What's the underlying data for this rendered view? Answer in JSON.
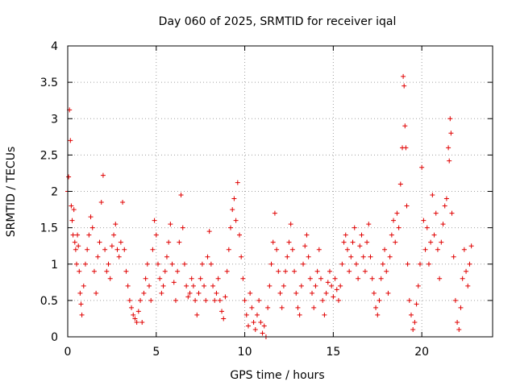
{
  "chart_data": {
    "type": "scatter",
    "title": "Day 060 of 2025, SRMTID for receiver iqal",
    "xlabel": "GPS time / hours",
    "ylabel": "SRMTID / TECUs",
    "xlim": [
      0,
      24
    ],
    "ylim": [
      0,
      4
    ],
    "x_ticks": [
      0,
      5,
      10,
      15,
      20
    ],
    "x_tick_labels": [
      "0",
      "5",
      "10",
      "15",
      "20"
    ],
    "y_ticks": [
      0,
      0.5,
      1,
      1.5,
      2,
      2.5,
      3,
      3.5,
      4
    ],
    "y_tick_labels": [
      "0",
      "0.5",
      "1",
      "1.5",
      "2",
      "2.5",
      "3",
      "3.5",
      "4"
    ],
    "grid": true,
    "marker": "+",
    "color": "#e00000",
    "series": [
      {
        "name": "SRMTID",
        "points": [
          [
            0.0,
            2.0
          ],
          [
            0.05,
            2.2
          ],
          [
            0.1,
            3.12
          ],
          [
            0.15,
            2.7
          ],
          [
            0.2,
            1.8
          ],
          [
            0.25,
            1.6
          ],
          [
            0.3,
            1.4
          ],
          [
            0.35,
            1.75
          ],
          [
            0.4,
            1.3
          ],
          [
            0.45,
            1.2
          ],
          [
            0.5,
            1.0
          ],
          [
            0.55,
            1.4
          ],
          [
            0.6,
            1.25
          ],
          [
            0.65,
            0.9
          ],
          [
            0.7,
            0.6
          ],
          [
            0.75,
            0.45
          ],
          [
            0.8,
            0.3
          ],
          [
            0.9,
            0.7
          ],
          [
            1.0,
            1.0
          ],
          [
            1.1,
            1.2
          ],
          [
            1.2,
            1.4
          ],
          [
            1.3,
            1.65
          ],
          [
            1.4,
            1.5
          ],
          [
            1.5,
            0.9
          ],
          [
            1.6,
            0.6
          ],
          [
            1.7,
            1.1
          ],
          [
            1.8,
            1.3
          ],
          [
            1.9,
            1.85
          ],
          [
            2.0,
            2.22
          ],
          [
            2.1,
            1.2
          ],
          [
            2.2,
            0.9
          ],
          [
            2.3,
            1.0
          ],
          [
            2.4,
            0.8
          ],
          [
            2.5,
            1.25
          ],
          [
            2.6,
            1.4
          ],
          [
            2.7,
            1.55
          ],
          [
            2.8,
            1.2
          ],
          [
            2.9,
            1.1
          ],
          [
            3.0,
            1.3
          ],
          [
            3.1,
            1.85
          ],
          [
            3.2,
            1.2
          ],
          [
            3.3,
            0.9
          ],
          [
            3.4,
            0.7
          ],
          [
            3.5,
            0.5
          ],
          [
            3.6,
            0.4
          ],
          [
            3.7,
            0.3
          ],
          [
            3.8,
            0.25
          ],
          [
            3.9,
            0.2
          ],
          [
            4.0,
            0.35
          ],
          [
            4.1,
            0.5
          ],
          [
            4.2,
            0.2
          ],
          [
            4.3,
            0.6
          ],
          [
            4.4,
            0.8
          ],
          [
            4.5,
            1.0
          ],
          [
            4.6,
            0.7
          ],
          [
            4.7,
            0.5
          ],
          [
            4.8,
            1.2
          ],
          [
            4.9,
            1.6
          ],
          [
            5.0,
            1.4
          ],
          [
            5.1,
            1.0
          ],
          [
            5.2,
            0.8
          ],
          [
            5.3,
            0.6
          ],
          [
            5.4,
            0.7
          ],
          [
            5.5,
            0.9
          ],
          [
            5.6,
            1.1
          ],
          [
            5.7,
            1.3
          ],
          [
            5.8,
            1.55
          ],
          [
            5.9,
            1.0
          ],
          [
            6.0,
            0.75
          ],
          [
            6.1,
            0.5
          ],
          [
            6.2,
            0.9
          ],
          [
            6.3,
            1.3
          ],
          [
            6.4,
            1.95
          ],
          [
            6.5,
            1.5
          ],
          [
            6.6,
            1.0
          ],
          [
            6.7,
            0.7
          ],
          [
            6.8,
            0.55
          ],
          [
            6.9,
            0.6
          ],
          [
            7.0,
            0.8
          ],
          [
            7.1,
            0.7
          ],
          [
            7.2,
            0.5
          ],
          [
            7.3,
            0.3
          ],
          [
            7.4,
            0.6
          ],
          [
            7.5,
            0.8
          ],
          [
            7.6,
            1.0
          ],
          [
            7.7,
            0.7
          ],
          [
            7.8,
            0.5
          ],
          [
            7.9,
            1.1
          ],
          [
            8.0,
            1.45
          ],
          [
            8.1,
            1.0
          ],
          [
            8.2,
            0.7
          ],
          [
            8.3,
            0.5
          ],
          [
            8.4,
            0.6
          ],
          [
            8.5,
            0.8
          ],
          [
            8.6,
            0.5
          ],
          [
            8.7,
            0.35
          ],
          [
            8.8,
            0.25
          ],
          [
            8.9,
            0.55
          ],
          [
            9.0,
            0.9
          ],
          [
            9.1,
            1.2
          ],
          [
            9.2,
            1.5
          ],
          [
            9.3,
            1.75
          ],
          [
            9.4,
            1.9
          ],
          [
            9.5,
            1.6
          ],
          [
            9.6,
            2.12
          ],
          [
            9.7,
            1.4
          ],
          [
            9.8,
            1.1
          ],
          [
            9.9,
            0.8
          ],
          [
            10.0,
            0.5
          ],
          [
            10.1,
            0.3
          ],
          [
            10.2,
            0.15
          ],
          [
            10.3,
            0.6
          ],
          [
            10.4,
            0.4
          ],
          [
            10.5,
            0.2
          ],
          [
            10.6,
            0.1
          ],
          [
            10.7,
            0.3
          ],
          [
            10.8,
            0.5
          ],
          [
            10.9,
            0.2
          ],
          [
            11.0,
            0.05
          ],
          [
            11.1,
            0.15
          ],
          [
            11.2,
            0.0
          ],
          [
            11.3,
            0.4
          ],
          [
            11.4,
            0.7
          ],
          [
            11.5,
            1.0
          ],
          [
            11.6,
            1.3
          ],
          [
            11.7,
            1.7
          ],
          [
            11.8,
            1.2
          ],
          [
            11.9,
            0.9
          ],
          [
            12.0,
            0.6
          ],
          [
            12.1,
            0.4
          ],
          [
            12.2,
            0.7
          ],
          [
            12.3,
            0.9
          ],
          [
            12.4,
            1.1
          ],
          [
            12.5,
            1.3
          ],
          [
            12.6,
            1.55
          ],
          [
            12.7,
            1.2
          ],
          [
            12.8,
            0.9
          ],
          [
            12.9,
            0.6
          ],
          [
            13.0,
            0.4
          ],
          [
            13.1,
            0.3
          ],
          [
            13.2,
            0.7
          ],
          [
            13.3,
            1.0
          ],
          [
            13.4,
            1.25
          ],
          [
            13.5,
            1.4
          ],
          [
            13.6,
            1.1
          ],
          [
            13.7,
            0.8
          ],
          [
            13.8,
            0.6
          ],
          [
            13.9,
            0.4
          ],
          [
            14.0,
            0.7
          ],
          [
            14.1,
            0.9
          ],
          [
            14.2,
            1.2
          ],
          [
            14.3,
            0.8
          ],
          [
            14.4,
            0.5
          ],
          [
            14.5,
            0.3
          ],
          [
            14.6,
            0.6
          ],
          [
            14.7,
            0.75
          ],
          [
            14.8,
            0.9
          ],
          [
            14.9,
            0.7
          ],
          [
            15.0,
            0.55
          ],
          [
            15.1,
            0.8
          ],
          [
            15.2,
            0.65
          ],
          [
            15.3,
            0.5
          ],
          [
            15.4,
            0.7
          ],
          [
            15.5,
            1.0
          ],
          [
            15.6,
            1.3
          ],
          [
            15.7,
            1.4
          ],
          [
            15.8,
            1.2
          ],
          [
            15.9,
            0.9
          ],
          [
            16.0,
            1.1
          ],
          [
            16.1,
            1.3
          ],
          [
            16.2,
            1.5
          ],
          [
            16.3,
            1.0
          ],
          [
            16.4,
            0.8
          ],
          [
            16.5,
            1.25
          ],
          [
            16.6,
            1.4
          ],
          [
            16.7,
            1.1
          ],
          [
            16.8,
            0.9
          ],
          [
            16.9,
            1.3
          ],
          [
            17.0,
            1.55
          ],
          [
            17.1,
            1.1
          ],
          [
            17.2,
            0.8
          ],
          [
            17.3,
            0.6
          ],
          [
            17.4,
            0.4
          ],
          [
            17.5,
            0.3
          ],
          [
            17.6,
            0.5
          ],
          [
            17.7,
            0.8
          ],
          [
            17.8,
            1.0
          ],
          [
            17.9,
            1.2
          ],
          [
            18.0,
            0.9
          ],
          [
            18.1,
            0.6
          ],
          [
            18.2,
            1.1
          ],
          [
            18.3,
            1.4
          ],
          [
            18.4,
            1.6
          ],
          [
            18.5,
            1.3
          ],
          [
            18.6,
            1.7
          ],
          [
            18.7,
            1.5
          ],
          [
            18.8,
            2.1
          ],
          [
            18.9,
            2.6
          ],
          [
            18.95,
            3.58
          ],
          [
            19.0,
            3.45
          ],
          [
            19.05,
            2.9
          ],
          [
            19.1,
            2.6
          ],
          [
            19.15,
            1.8
          ],
          [
            19.2,
            1.0
          ],
          [
            19.3,
            0.5
          ],
          [
            19.4,
            0.3
          ],
          [
            19.5,
            0.1
          ],
          [
            19.6,
            0.2
          ],
          [
            19.7,
            0.45
          ],
          [
            19.8,
            0.7
          ],
          [
            19.9,
            1.0
          ],
          [
            20.0,
            2.33
          ],
          [
            20.1,
            1.6
          ],
          [
            20.2,
            1.2
          ],
          [
            20.3,
            1.5
          ],
          [
            20.4,
            1.0
          ],
          [
            20.5,
            1.3
          ],
          [
            20.6,
            1.95
          ],
          [
            20.7,
            1.4
          ],
          [
            20.8,
            1.7
          ],
          [
            20.9,
            1.2
          ],
          [
            21.0,
            0.8
          ],
          [
            21.1,
            1.3
          ],
          [
            21.2,
            1.55
          ],
          [
            21.3,
            1.8
          ],
          [
            21.4,
            1.9
          ],
          [
            21.5,
            2.6
          ],
          [
            21.55,
            2.42
          ],
          [
            21.6,
            3.0
          ],
          [
            21.65,
            2.8
          ],
          [
            21.7,
            1.7
          ],
          [
            21.8,
            1.1
          ],
          [
            21.9,
            0.5
          ],
          [
            22.0,
            0.2
          ],
          [
            22.1,
            0.1
          ],
          [
            22.2,
            0.4
          ],
          [
            22.3,
            0.8
          ],
          [
            22.4,
            1.2
          ],
          [
            22.5,
            0.9
          ],
          [
            22.6,
            0.7
          ],
          [
            22.7,
            1.0
          ],
          [
            22.8,
            1.25
          ]
        ]
      }
    ]
  }
}
